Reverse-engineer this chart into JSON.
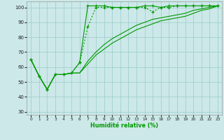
{
  "x": [
    0,
    1,
    2,
    3,
    4,
    5,
    6,
    7,
    8,
    9,
    10,
    11,
    12,
    13,
    14,
    15,
    16,
    17,
    18,
    19,
    20,
    21,
    22,
    23
  ],
  "line1": [
    65,
    54,
    45,
    55,
    55,
    56,
    63,
    101,
    101,
    101,
    100,
    100,
    100,
    100,
    101,
    101,
    100,
    101,
    101,
    101,
    101,
    101,
    101,
    101
  ],
  "line2": [
    65,
    54,
    45,
    55,
    55,
    56,
    63,
    87,
    100,
    100,
    100,
    100,
    100,
    100,
    100,
    97,
    100,
    100,
    101,
    101,
    101,
    101,
    101,
    101
  ],
  "line3": [
    65,
    54,
    45,
    55,
    55,
    56,
    56,
    64,
    70,
    75,
    79,
    82,
    85,
    88,
    90,
    92,
    93,
    94,
    95,
    96,
    98,
    99,
    100,
    101
  ],
  "line4": [
    65,
    54,
    45,
    55,
    55,
    56,
    56,
    62,
    68,
    72,
    76,
    79,
    82,
    85,
    87,
    89,
    91,
    92,
    93,
    94,
    96,
    98,
    99,
    101
  ],
  "bg_color": "#cce8e8",
  "grid_color": "#99cccc",
  "line_color": "#009900",
  "xlabel": "Humidité relative (%)",
  "ylim": [
    28,
    104
  ],
  "xlim": [
    -0.5,
    23.5
  ],
  "yticks": [
    30,
    40,
    50,
    60,
    70,
    80,
    90,
    100
  ],
  "xticks": [
    0,
    1,
    2,
    3,
    4,
    5,
    6,
    7,
    8,
    9,
    10,
    11,
    12,
    13,
    14,
    15,
    16,
    17,
    18,
    19,
    20,
    21,
    22,
    23
  ]
}
